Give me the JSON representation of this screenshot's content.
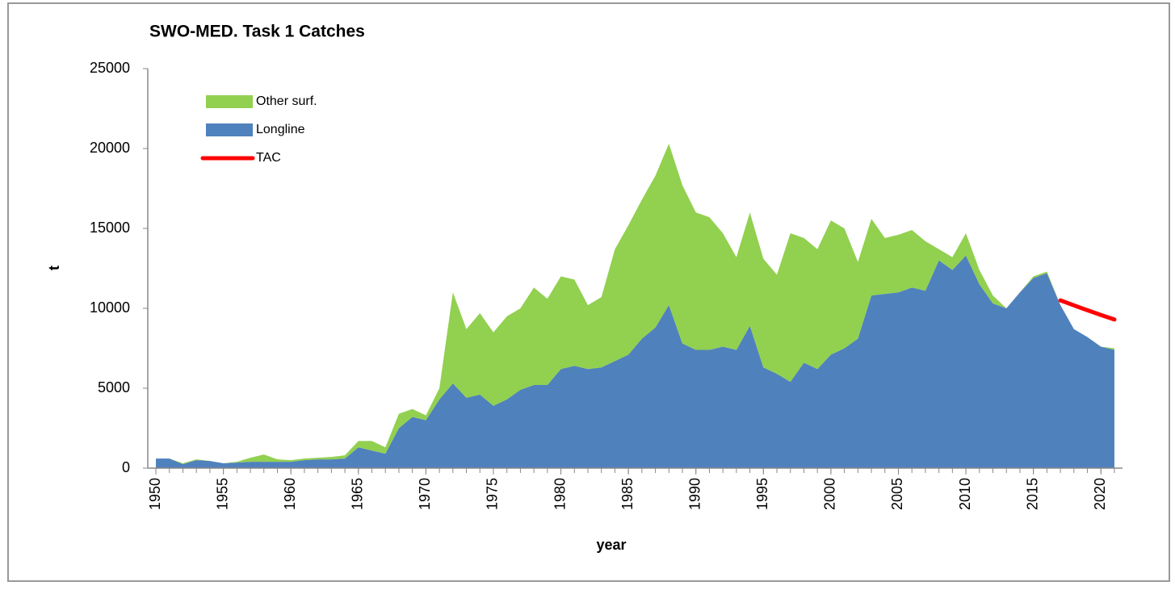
{
  "chart_data": {
    "type": "stacked-area",
    "title": "SWO-MED. Task 1 Catches",
    "x_label": "year",
    "y_label": "t",
    "x": [
      1950,
      1951,
      1952,
      1953,
      1954,
      1955,
      1956,
      1957,
      1958,
      1959,
      1960,
      1961,
      1962,
      1963,
      1964,
      1965,
      1966,
      1967,
      1968,
      1969,
      1970,
      1971,
      1972,
      1973,
      1974,
      1975,
      1976,
      1977,
      1978,
      1979,
      1980,
      1981,
      1982,
      1983,
      1984,
      1985,
      1986,
      1987,
      1988,
      1989,
      1990,
      1991,
      1992,
      1993,
      1994,
      1995,
      1996,
      1997,
      1998,
      1999,
      2000,
      2001,
      2002,
      2003,
      2004,
      2005,
      2006,
      2007,
      2008,
      2009,
      2010,
      2011,
      2012,
      2013,
      2014,
      2015,
      2016,
      2017,
      2018,
      2019,
      2020,
      2021
    ],
    "series": [
      {
        "name": "Other surf.",
        "color": "#92d050",
        "kind": "area",
        "values": [
          0,
          0,
          50,
          50,
          0,
          0,
          50,
          250,
          450,
          150,
          100,
          100,
          100,
          150,
          200,
          400,
          600,
          400,
          900,
          500,
          300,
          700,
          5700,
          4300,
          5100,
          4600,
          5200,
          5100,
          6100,
          5400,
          5800,
          5400,
          4000,
          4400,
          7000,
          8100,
          8700,
          9500,
          10100,
          9900,
          8600,
          8300,
          7100,
          5800,
          7100,
          6800,
          6200,
          9300,
          7800,
          7500,
          8400,
          7500,
          4800,
          4800,
          3500,
          3600,
          3600,
          3100,
          700,
          800,
          1400,
          900,
          500,
          0,
          0,
          100,
          100,
          0,
          0,
          0,
          0,
          100
        ]
      },
      {
        "name": "Longline",
        "color": "#4f81bd",
        "kind": "area",
        "values": [
          600,
          600,
          250,
          500,
          450,
          300,
          350,
          400,
          400,
          400,
          400,
          500,
          550,
          550,
          600,
          1300,
          1100,
          900,
          2500,
          3200,
          3000,
          4300,
          5300,
          4400,
          4600,
          3900,
          4300,
          4900,
          5200,
          5200,
          6200,
          6400,
          6200,
          6300,
          6700,
          7100,
          8100,
          8800,
          10200,
          7800,
          7400,
          7400,
          7600,
          7400,
          8900,
          6300,
          5900,
          5400,
          6600,
          6200,
          7100,
          7500,
          8100,
          10800,
          10900,
          11000,
          11300,
          11100,
          13000,
          12400,
          13300,
          11500,
          10300,
          10000,
          11000,
          11900,
          12200,
          10200,
          8700,
          8200,
          7600,
          7400
        ]
      },
      {
        "name": "TAC",
        "color": "#ff0000",
        "kind": "line",
        "values": [
          null,
          null,
          null,
          null,
          null,
          null,
          null,
          null,
          null,
          null,
          null,
          null,
          null,
          null,
          null,
          null,
          null,
          null,
          null,
          null,
          null,
          null,
          null,
          null,
          null,
          null,
          null,
          null,
          null,
          null,
          null,
          null,
          null,
          null,
          null,
          null,
          null,
          null,
          null,
          null,
          null,
          null,
          null,
          null,
          null,
          null,
          null,
          null,
          null,
          null,
          null,
          null,
          null,
          null,
          null,
          null,
          null,
          null,
          null,
          null,
          null,
          null,
          null,
          null,
          null,
          null,
          null,
          10500,
          10185,
          9879,
          9583,
          9300
        ]
      }
    ],
    "xlim": [
      1949.4,
      2021.6
    ],
    "xticks": [
      1950,
      1955,
      1960,
      1965,
      1970,
      1975,
      1980,
      1985,
      1990,
      1995,
      2000,
      2005,
      2010,
      2015,
      2020
    ],
    "ylim": [
      0,
      25000
    ],
    "yticks": [
      0,
      5000,
      10000,
      15000,
      20000,
      25000
    ],
    "legend": "top-left"
  }
}
